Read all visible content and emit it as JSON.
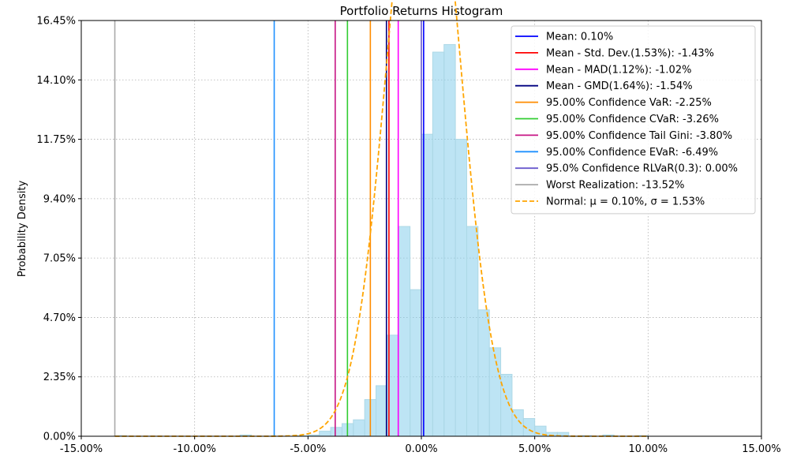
{
  "chart_data": {
    "type": "bar",
    "title": "Portfolio Returns Histogram",
    "xlabel": "",
    "ylabel": "Probability Density",
    "xlim": [
      -15,
      15
    ],
    "ylim": [
      0,
      16.45
    ],
    "xticks": [
      -15,
      -10,
      -5,
      0,
      5,
      10,
      15
    ],
    "xtick_labels": [
      "-15.00%",
      "-10.00%",
      "-5.00%",
      "0.00%",
      "5.00%",
      "10.00%",
      "15.00%"
    ],
    "yticks": [
      0,
      2.35,
      4.7,
      7.05,
      9.4,
      11.75,
      14.1,
      16.45
    ],
    "ytick_labels": [
      "0.00%",
      "2.35%",
      "4.70%",
      "7.05%",
      "9.40%",
      "11.75%",
      "14.10%",
      "16.45%"
    ],
    "grid": true,
    "legend_position": "top-right",
    "histogram": {
      "bin_width": 0.5,
      "bins_left": [
        -13.5,
        -13.0,
        -12.5,
        -12.0,
        -11.5,
        -11.0,
        -10.5,
        -10.0,
        -9.5,
        -9.0,
        -8.5,
        -8.0,
        -7.5,
        -7.0,
        -6.5,
        -6.0,
        -5.5,
        -5.0,
        -4.5,
        -4.0,
        -3.5,
        -3.0,
        -2.5,
        -2.0,
        -1.5,
        -1.0,
        -0.5,
        0.0,
        0.5,
        1.0,
        1.5,
        2.0,
        2.5,
        3.0,
        3.5,
        4.0,
        4.5,
        5.0,
        5.5,
        6.0,
        6.5,
        7.0,
        7.5,
        8.0,
        8.5,
        9.0,
        9.5
      ],
      "density": [
        0.02,
        0.0,
        0.0,
        0.0,
        0.0,
        0.0,
        0.0,
        0.0,
        0.0,
        0.0,
        0.0,
        0.05,
        0.0,
        0.0,
        0.0,
        0.0,
        0.02,
        0.05,
        0.2,
        0.35,
        0.5,
        0.65,
        1.45,
        2.0,
        4.0,
        8.3,
        5.8,
        11.95,
        15.2,
        15.5,
        11.75,
        8.3,
        5.0,
        3.5,
        2.45,
        1.05,
        0.7,
        0.4,
        0.15,
        0.15,
        0.0,
        0.02,
        0.0,
        0.05,
        0.0,
        0.0,
        0.02
      ]
    },
    "normal_curve": {
      "name": "Normal: μ = 0.10%, σ = 1.53%",
      "mu": 0.1,
      "sigma": 1.53,
      "x_range": [
        -13.52,
        10.0
      ],
      "color": "#ffa500"
    },
    "series": [
      {
        "name": "Mean: 0.10%",
        "value": 0.1,
        "color": "#0000ff"
      },
      {
        "name": "Mean - Std. Dev.(1.53%): -1.43%",
        "value": -1.43,
        "color": "#ff0000"
      },
      {
        "name": "Mean - MAD(1.12%): -1.02%",
        "value": -1.02,
        "color": "#ff00ff"
      },
      {
        "name": "Mean - GMD(1.64%): -1.54%",
        "value": -1.54,
        "color": "#000080"
      },
      {
        "name": "95.00% Confidence VaR: -2.25%",
        "value": -2.25,
        "color": "#ff8c00"
      },
      {
        "name": "95.00% Confidence CVaR: -3.26%",
        "value": -3.26,
        "color": "#32cd32"
      },
      {
        "name": "95.00% Confidence Tail Gini: -3.80%",
        "value": -3.8,
        "color": "#c71585"
      },
      {
        "name": "95.00% Confidence EVaR: -6.49%",
        "value": -6.49,
        "color": "#1e90ff"
      },
      {
        "name": "95.0% Confidence RLVaR(0.3): 0.00%",
        "value": 0.0,
        "color": "#6a5acd"
      },
      {
        "name": "Worst Realization: -13.52%",
        "value": -13.52,
        "color": "#a9a9a9"
      }
    ],
    "bar_color": "#87ceeb",
    "bar_edge_color": "#add8e6"
  }
}
